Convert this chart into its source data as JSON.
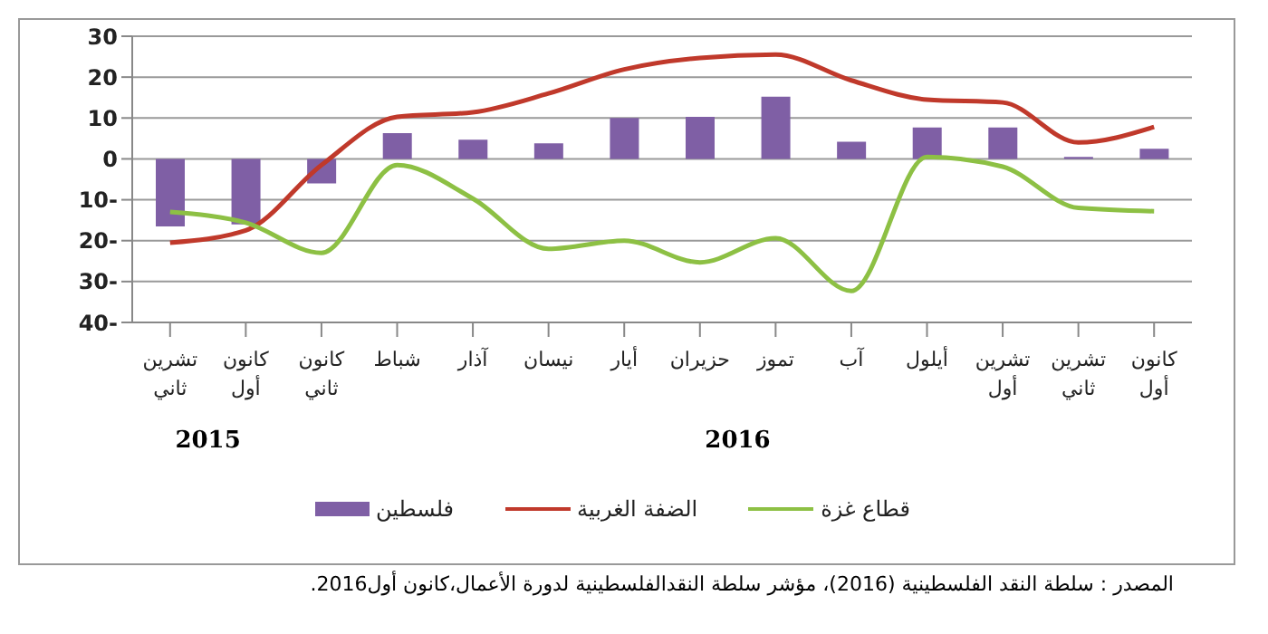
{
  "chart_data": {
    "type": "bar",
    "categories": [
      "تشرين ثاني",
      "كانون أول",
      "كانون ثاني",
      "شباط",
      "آذار",
      "نيسان",
      "أيار",
      "حزيران",
      "تموز",
      "آب",
      "أيلول",
      "تشرين أول",
      "تشرين ثاني",
      "كانون أول"
    ],
    "series": [
      {
        "name": "فلسطين",
        "color": "#7f5fa5",
        "values": [
          -16.5,
          -16,
          -6,
          6.3,
          4.7,
          3.8,
          10,
          10.3,
          15.2,
          4.2,
          7.7,
          7.7,
          0.5,
          2.5
        ]
      },
      {
        "name": "الضفة الغربية",
        "type": "line",
        "color": "#c0392b",
        "values": [
          -20.5,
          -17.5,
          -1.5,
          10.3,
          11.4,
          16,
          21.9,
          24.7,
          25.5,
          19.2,
          14.5,
          13.8,
          4,
          7.8
        ]
      },
      {
        "name": "قطاع غزة",
        "type": "line",
        "color": "#8dc044",
        "values": [
          -13,
          -15.6,
          -23,
          -1.5,
          -9.7,
          -22,
          -20,
          -25.3,
          -19.4,
          -32.3,
          0.5,
          -1.9,
          -12,
          -12.8
        ]
      }
    ],
    "ylim": [
      -40,
      30
    ],
    "yticks": [
      {
        "value": -40,
        "label": "40-"
      },
      {
        "value": -30,
        "label": "30-"
      },
      {
        "value": -20,
        "label": "20-"
      },
      {
        "value": -10,
        "label": "10-"
      },
      0,
      10,
      20,
      30
    ],
    "grid": "y",
    "legend": "bottom",
    "marker": "none",
    "line_style": "solid",
    "annotations": [
      "2015",
      "2016",
      "المصدر : سلطة النقد الفلسطينية (2016)، مؤشر سلطة النقدالفلسطينية لدورة الأعمال،كانون أول2016."
    ]
  }
}
